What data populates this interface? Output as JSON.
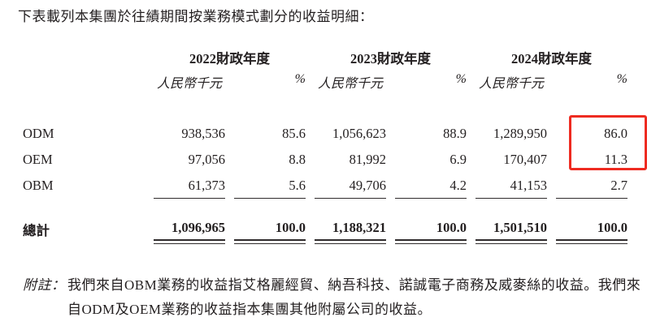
{
  "intro": "下表載列本集團於往績期間按業務模式劃分的收益明細：",
  "table": {
    "year_headers": [
      "2022財政年度",
      "2023財政年度",
      "2024財政年度"
    ],
    "unit_label": "人民幣千元",
    "percent_label": "%",
    "rows": [
      {
        "label": "ODM",
        "values": [
          "938,536",
          "85.6",
          "1,056,623",
          "88.9",
          "1,289,950",
          "86.0"
        ]
      },
      {
        "label": "OEM",
        "values": [
          "97,056",
          "8.8",
          "81,992",
          "6.9",
          "170,407",
          "11.3"
        ]
      },
      {
        "label": "OBM",
        "values": [
          "61,373",
          "5.6",
          "49,706",
          "4.2",
          "41,153",
          "2.7"
        ]
      }
    ],
    "total": {
      "label": "總計",
      "values": [
        "1,096,965",
        "100.0",
        "1,188,321",
        "100.0",
        "1,501,510",
        "100.0"
      ]
    }
  },
  "footnote": {
    "label": "附註：",
    "line1": "我們來自OBM業務的收益指艾格麗經貿、納吾科技、諾誠電子商務及威麥絲的收益。我們來",
    "line2": "自ODM及OEM業務的收益指本集團其他附屬公司的收益。"
  },
  "annotation": {
    "highlight_box_color": "#ee2b21"
  }
}
